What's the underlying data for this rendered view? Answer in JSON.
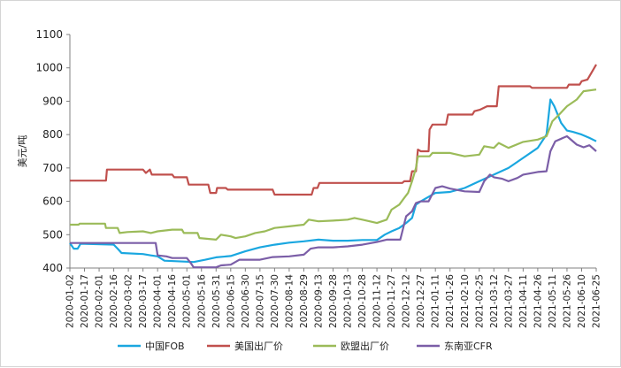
{
  "chart_data": {
    "type": "line",
    "title": "",
    "xlabel": "",
    "ylabel": "美元/吨",
    "ylim": [
      400,
      1100
    ],
    "yticks": [
      400,
      500,
      600,
      700,
      800,
      900,
      1000,
      1100
    ],
    "xlim": [
      "2020-01-02",
      "2021-06-25"
    ],
    "xticks": [
      "2020-01-02",
      "2020-01-17",
      "2020-02-01",
      "2020-02-16",
      "2020-03-02",
      "2020-03-17",
      "2020-04-01",
      "2020-04-16",
      "2020-05-01",
      "2020-05-16",
      "2020-05-31",
      "2020-06-15",
      "2020-06-30",
      "2020-07-15",
      "2020-07-30",
      "2020-08-14",
      "2020-08-29",
      "2020-09-13",
      "2020-09-28",
      "2020-10-13",
      "2020-10-28",
      "2020-11-12",
      "2020-11-27",
      "2020-12-12",
      "2020-12-27",
      "2021-01-11",
      "2021-01-26",
      "2021-02-10",
      "2021-02-25",
      "2021-03-12",
      "2021-03-27",
      "2021-04-11",
      "2021-04-26",
      "2021-05-11",
      "2021-05-26",
      "2021-06-10",
      "2021-06-25"
    ],
    "grid": false,
    "legend_position": "bottom",
    "series": [
      {
        "name": "中国FOB",
        "color": "#1aa7e0",
        "points": [
          [
            "2020-01-02",
            475
          ],
          [
            "2020-01-06",
            458
          ],
          [
            "2020-01-10",
            458
          ],
          [
            "2020-01-13",
            473
          ],
          [
            "2020-02-16",
            470
          ],
          [
            "2020-02-20",
            458
          ],
          [
            "2020-02-24",
            445
          ],
          [
            "2020-03-17",
            442
          ],
          [
            "2020-03-25",
            438
          ],
          [
            "2020-04-01",
            435
          ],
          [
            "2020-04-08",
            422
          ],
          [
            "2020-05-08",
            418
          ],
          [
            "2020-05-20",
            425
          ],
          [
            "2020-05-31",
            432
          ],
          [
            "2020-06-15",
            436
          ],
          [
            "2020-06-30",
            450
          ],
          [
            "2020-07-15",
            462
          ],
          [
            "2020-07-30",
            470
          ],
          [
            "2020-08-14",
            476
          ],
          [
            "2020-08-29",
            480
          ],
          [
            "2020-09-13",
            485
          ],
          [
            "2020-09-28",
            482
          ],
          [
            "2020-10-13",
            482
          ],
          [
            "2020-10-28",
            484
          ],
          [
            "2020-11-12",
            484
          ],
          [
            "2020-11-20",
            500
          ],
          [
            "2020-11-27",
            510
          ],
          [
            "2020-12-05",
            520
          ],
          [
            "2020-12-12",
            535
          ],
          [
            "2020-12-18",
            550
          ],
          [
            "2020-12-22",
            590
          ],
          [
            "2020-12-27",
            600
          ],
          [
            "2021-01-11",
            625
          ],
          [
            "2021-01-26",
            628
          ],
          [
            "2021-02-10",
            640
          ],
          [
            "2021-02-25",
            660
          ],
          [
            "2021-03-12",
            680
          ],
          [
            "2021-03-27",
            700
          ],
          [
            "2021-04-11",
            730
          ],
          [
            "2021-04-26",
            760
          ],
          [
            "2021-05-05",
            800
          ],
          [
            "2021-05-09",
            905
          ],
          [
            "2021-05-13",
            885
          ],
          [
            "2021-05-20",
            835
          ],
          [
            "2021-05-26",
            812
          ],
          [
            "2021-06-01",
            808
          ],
          [
            "2021-06-10",
            800
          ],
          [
            "2021-06-18",
            790
          ],
          [
            "2021-06-25",
            780
          ]
        ]
      },
      {
        "name": "美国出厂价",
        "color": "#c0504d",
        "points": [
          [
            "2020-01-02",
            662
          ],
          [
            "2020-02-08",
            662
          ],
          [
            "2020-02-09",
            695
          ],
          [
            "2020-03-17",
            695
          ],
          [
            "2020-03-20",
            685
          ],
          [
            "2020-03-24",
            695
          ],
          [
            "2020-03-26",
            680
          ],
          [
            "2020-04-16",
            680
          ],
          [
            "2020-04-18",
            672
          ],
          [
            "2020-05-01",
            672
          ],
          [
            "2020-05-03",
            650
          ],
          [
            "2020-05-23",
            650
          ],
          [
            "2020-05-25",
            625
          ],
          [
            "2020-05-31",
            625
          ],
          [
            "2020-06-01",
            640
          ],
          [
            "2020-06-10",
            640
          ],
          [
            "2020-06-12",
            635
          ],
          [
            "2020-07-28",
            635
          ],
          [
            "2020-07-30",
            620
          ],
          [
            "2020-09-06",
            620
          ],
          [
            "2020-09-08",
            640
          ],
          [
            "2020-09-12",
            640
          ],
          [
            "2020-09-14",
            655
          ],
          [
            "2020-12-08",
            655
          ],
          [
            "2020-12-10",
            660
          ],
          [
            "2020-12-16",
            660
          ],
          [
            "2020-12-18",
            690
          ],
          [
            "2020-12-22",
            690
          ],
          [
            "2020-12-24",
            755
          ],
          [
            "2020-12-27",
            750
          ],
          [
            "2021-01-04",
            750
          ],
          [
            "2021-01-05",
            815
          ],
          [
            "2021-01-08",
            830
          ],
          [
            "2021-01-22",
            830
          ],
          [
            "2021-01-24",
            860
          ],
          [
            "2021-02-18",
            860
          ],
          [
            "2021-02-20",
            870
          ],
          [
            "2021-02-26",
            875
          ],
          [
            "2021-03-05",
            885
          ],
          [
            "2021-03-15",
            885
          ],
          [
            "2021-03-17",
            945
          ],
          [
            "2021-04-18",
            945
          ],
          [
            "2021-04-20",
            940
          ],
          [
            "2021-05-26",
            940
          ],
          [
            "2021-05-28",
            950
          ],
          [
            "2021-06-08",
            950
          ],
          [
            "2021-06-10",
            960
          ],
          [
            "2021-06-16",
            965
          ],
          [
            "2021-06-20",
            985
          ],
          [
            "2021-06-25",
            1010
          ]
        ]
      },
      {
        "name": "欧盟出厂价",
        "color": "#9bbb59",
        "points": [
          [
            "2020-01-02",
            530
          ],
          [
            "2020-01-11",
            530
          ],
          [
            "2020-01-12",
            533
          ],
          [
            "2020-02-07",
            533
          ],
          [
            "2020-02-08",
            520
          ],
          [
            "2020-02-20",
            520
          ],
          [
            "2020-02-22",
            505
          ],
          [
            "2020-03-01",
            508
          ],
          [
            "2020-03-17",
            510
          ],
          [
            "2020-03-25",
            505
          ],
          [
            "2020-04-01",
            510
          ],
          [
            "2020-04-16",
            515
          ],
          [
            "2020-04-26",
            515
          ],
          [
            "2020-04-28",
            505
          ],
          [
            "2020-05-12",
            505
          ],
          [
            "2020-05-14",
            490
          ],
          [
            "2020-05-31",
            485
          ],
          [
            "2020-06-05",
            500
          ],
          [
            "2020-06-15",
            495
          ],
          [
            "2020-06-20",
            490
          ],
          [
            "2020-06-30",
            495
          ],
          [
            "2020-07-10",
            505
          ],
          [
            "2020-07-20",
            510
          ],
          [
            "2020-07-30",
            520
          ],
          [
            "2020-08-14",
            525
          ],
          [
            "2020-08-29",
            530
          ],
          [
            "2020-09-03",
            545
          ],
          [
            "2020-09-13",
            540
          ],
          [
            "2020-09-28",
            542
          ],
          [
            "2020-10-13",
            545
          ],
          [
            "2020-10-20",
            550
          ],
          [
            "2020-10-28",
            545
          ],
          [
            "2020-11-12",
            535
          ],
          [
            "2020-11-22",
            545
          ],
          [
            "2020-11-27",
            575
          ],
          [
            "2020-12-05",
            590
          ],
          [
            "2020-12-10",
            610
          ],
          [
            "2020-12-14",
            625
          ],
          [
            "2020-12-18",
            660
          ],
          [
            "2020-12-22",
            700
          ],
          [
            "2020-12-24",
            735
          ],
          [
            "2021-01-05",
            735
          ],
          [
            "2021-01-08",
            745
          ],
          [
            "2021-01-26",
            745
          ],
          [
            "2021-02-10",
            735
          ],
          [
            "2021-02-25",
            740
          ],
          [
            "2021-03-02",
            765
          ],
          [
            "2021-03-12",
            760
          ],
          [
            "2021-03-17",
            775
          ],
          [
            "2021-03-27",
            760
          ],
          [
            "2021-04-11",
            778
          ],
          [
            "2021-04-26",
            785
          ],
          [
            "2021-05-05",
            795
          ],
          [
            "2021-05-11",
            840
          ],
          [
            "2021-05-18",
            860
          ],
          [
            "2021-05-26",
            885
          ],
          [
            "2021-06-05",
            905
          ],
          [
            "2021-06-12",
            930
          ],
          [
            "2021-06-25",
            935
          ]
        ]
      },
      {
        "name": "东南亚CFR",
        "color": "#7b5ea7",
        "points": [
          [
            "2020-01-02",
            475
          ],
          [
            "2020-03-30",
            475
          ],
          [
            "2020-04-01",
            438
          ],
          [
            "2020-04-10",
            435
          ],
          [
            "2020-04-16",
            430
          ],
          [
            "2020-05-01",
            430
          ],
          [
            "2020-05-05",
            415
          ],
          [
            "2020-05-08",
            402
          ],
          [
            "2020-05-31",
            402
          ],
          [
            "2020-06-05",
            408
          ],
          [
            "2020-06-15",
            410
          ],
          [
            "2020-06-24",
            425
          ],
          [
            "2020-07-15",
            425
          ],
          [
            "2020-07-28",
            433
          ],
          [
            "2020-08-14",
            435
          ],
          [
            "2020-08-29",
            440
          ],
          [
            "2020-09-05",
            458
          ],
          [
            "2020-09-13",
            462
          ],
          [
            "2020-09-28",
            462
          ],
          [
            "2020-10-13",
            465
          ],
          [
            "2020-10-28",
            470
          ],
          [
            "2020-11-12",
            478
          ],
          [
            "2020-11-22",
            485
          ],
          [
            "2020-12-06",
            485
          ],
          [
            "2020-12-12",
            555
          ],
          [
            "2020-12-18",
            570
          ],
          [
            "2020-12-22",
            595
          ],
          [
            "2020-12-27",
            600
          ],
          [
            "2021-01-04",
            600
          ],
          [
            "2021-01-11",
            640
          ],
          [
            "2021-01-18",
            645
          ],
          [
            "2021-01-26",
            638
          ],
          [
            "2021-02-10",
            630
          ],
          [
            "2021-02-25",
            628
          ],
          [
            "2021-03-02",
            660
          ],
          [
            "2021-03-08",
            680
          ],
          [
            "2021-03-12",
            672
          ],
          [
            "2021-03-20",
            668
          ],
          [
            "2021-03-27",
            660
          ],
          [
            "2021-04-05",
            670
          ],
          [
            "2021-04-11",
            680
          ],
          [
            "2021-04-26",
            688
          ],
          [
            "2021-05-05",
            690
          ],
          [
            "2021-05-09",
            750
          ],
          [
            "2021-05-14",
            780
          ],
          [
            "2021-05-22",
            790
          ],
          [
            "2021-05-26",
            795
          ],
          [
            "2021-06-05",
            770
          ],
          [
            "2021-06-12",
            762
          ],
          [
            "2021-06-18",
            768
          ],
          [
            "2021-06-25",
            750
          ]
        ]
      }
    ]
  }
}
